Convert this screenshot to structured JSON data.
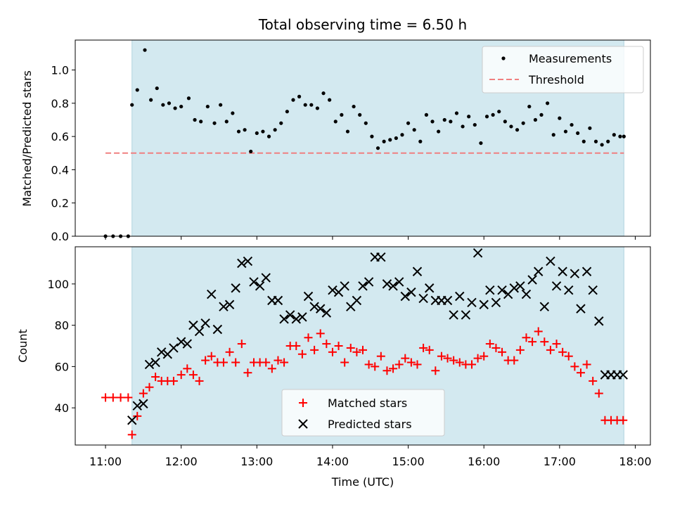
{
  "chart_data": [
    {
      "type": "scatter",
      "title": "Total observing time = 6.50 h",
      "ylabel": "Matched/Predicted stars",
      "ylim": [
        0,
        1.18
      ],
      "xlim": [
        10.6,
        18.2
      ],
      "ytick_labels": [
        "0.0",
        "0.2",
        "0.4",
        "0.6",
        "0.8",
        "1.0"
      ],
      "yticks": [
        0,
        0.2,
        0.4,
        0.6,
        0.8,
        1.0
      ],
      "shaded_region": {
        "x": [
          11.35,
          17.85
        ],
        "color": "#d3e9f0"
      },
      "legend_placement": "upper right",
      "series": [
        {
          "name": "Measurements",
          "marker": "dot",
          "color": "#000000",
          "x": [
            11.0,
            11.1,
            11.2,
            11.3,
            11.35,
            11.42,
            11.52,
            11.6,
            11.68,
            11.76,
            11.84,
            11.92,
            12.0,
            12.1,
            12.18,
            12.26,
            12.35,
            12.44,
            12.52,
            12.6,
            12.68,
            12.76,
            12.84,
            12.92,
            13.0,
            13.08,
            13.16,
            13.24,
            13.32,
            13.4,
            13.48,
            13.56,
            13.64,
            13.72,
            13.8,
            13.88,
            13.96,
            14.04,
            14.12,
            14.2,
            14.28,
            14.36,
            14.44,
            14.52,
            14.6,
            14.68,
            14.76,
            14.84,
            14.92,
            15.0,
            15.08,
            15.16,
            15.24,
            15.32,
            15.4,
            15.48,
            15.56,
            15.64,
            15.72,
            15.8,
            15.88,
            15.96,
            16.04,
            16.12,
            16.2,
            16.28,
            16.36,
            16.44,
            16.52,
            16.6,
            16.68,
            16.76,
            16.84,
            16.92,
            17.0,
            17.08,
            17.16,
            17.24,
            17.32,
            17.4,
            17.48,
            17.56,
            17.64,
            17.72,
            17.8,
            17.85
          ],
          "y": [
            0.0,
            0.0,
            0.0,
            0.0,
            0.79,
            0.88,
            1.12,
            0.82,
            0.89,
            0.79,
            0.8,
            0.77,
            0.78,
            0.83,
            0.7,
            0.69,
            0.78,
            0.68,
            0.79,
            0.69,
            0.74,
            0.63,
            0.64,
            0.51,
            0.62,
            0.63,
            0.6,
            0.64,
            0.68,
            0.75,
            0.82,
            0.84,
            0.79,
            0.79,
            0.77,
            0.86,
            0.82,
            0.69,
            0.73,
            0.63,
            0.78,
            0.73,
            0.68,
            0.6,
            0.53,
            0.57,
            0.58,
            0.59,
            0.61,
            0.68,
            0.64,
            0.57,
            0.73,
            0.69,
            0.63,
            0.7,
            0.69,
            0.74,
            0.66,
            0.72,
            0.67,
            0.56,
            0.72,
            0.73,
            0.75,
            0.69,
            0.66,
            0.64,
            0.68,
            0.78,
            0.7,
            0.73,
            0.8,
            0.61,
            0.71,
            0.63,
            0.67,
            0.62,
            0.57,
            0.65,
            0.57,
            0.55,
            0.57,
            0.61,
            0.6,
            0.6
          ]
        },
        {
          "name": "Threshold",
          "marker": "dashed-line",
          "color": "#f08080",
          "x": [
            11.0,
            17.85
          ],
          "y": [
            0.5,
            0.5
          ]
        }
      ]
    },
    {
      "type": "scatter",
      "xlabel": "Time (UTC)",
      "ylabel": "Count",
      "ylim": [
        22,
        118
      ],
      "xlim": [
        10.6,
        18.2
      ],
      "xtick_labels": [
        "11:00",
        "12:00",
        "13:00",
        "14:00",
        "15:00",
        "16:00",
        "17:00",
        "18:00"
      ],
      "xticks": [
        11,
        12,
        13,
        14,
        15,
        16,
        17,
        18
      ],
      "ytick_labels": [
        "40",
        "60",
        "80",
        "100"
      ],
      "yticks": [
        40,
        60,
        80,
        100
      ],
      "shaded_region": {
        "x": [
          11.35,
          17.85
        ],
        "color": "#d3e9f0"
      },
      "legend_placement": "lower center",
      "series": [
        {
          "name": "Matched stars",
          "marker": "plus",
          "color": "#ff0000",
          "x": [
            11.0,
            11.1,
            11.2,
            11.3,
            11.35,
            11.42,
            11.5,
            11.58,
            11.66,
            11.74,
            11.82,
            11.9,
            12.0,
            12.08,
            12.16,
            12.24,
            12.32,
            12.4,
            12.48,
            12.56,
            12.64,
            12.72,
            12.8,
            12.88,
            12.96,
            13.04,
            13.12,
            13.2,
            13.28,
            13.36,
            13.44,
            13.52,
            13.6,
            13.68,
            13.76,
            13.84,
            13.92,
            14.0,
            14.08,
            14.16,
            14.24,
            14.32,
            14.4,
            14.48,
            14.56,
            14.64,
            14.72,
            14.8,
            14.88,
            14.96,
            15.04,
            15.12,
            15.2,
            15.28,
            15.36,
            15.44,
            15.52,
            15.6,
            15.68,
            15.76,
            15.84,
            15.92,
            16.0,
            16.08,
            16.16,
            16.24,
            16.32,
            16.4,
            16.48,
            16.56,
            16.64,
            16.72,
            16.8,
            16.88,
            16.96,
            17.04,
            17.12,
            17.2,
            17.28,
            17.36,
            17.44,
            17.52,
            17.6,
            17.68,
            17.76,
            17.84
          ],
          "y": [
            45,
            45,
            45,
            45,
            27,
            36,
            47,
            50,
            55,
            53,
            53,
            53,
            56,
            59,
            56,
            53,
            63,
            65,
            62,
            62,
            67,
            62,
            71,
            57,
            62,
            62,
            62,
            59,
            63,
            62,
            70,
            70,
            66,
            74,
            68,
            76,
            71,
            67,
            70,
            62,
            69,
            67,
            68,
            61,
            60,
            65,
            58,
            59,
            61,
            64,
            62,
            61,
            69,
            68,
            58,
            65,
            64,
            63,
            62,
            61,
            61,
            64,
            65,
            71,
            69,
            67,
            63,
            63,
            68,
            74,
            72,
            77,
            72,
            68,
            71,
            67,
            65,
            60,
            57,
            61,
            53,
            47,
            34,
            34,
            34,
            34
          ]
        },
        {
          "name": "Predicted stars",
          "marker": "x",
          "color": "#000000",
          "x": [
            11.35,
            11.42,
            11.5,
            11.58,
            11.66,
            11.74,
            11.82,
            11.9,
            12.0,
            12.08,
            12.16,
            12.24,
            12.32,
            12.4,
            12.48,
            12.56,
            12.64,
            12.72,
            12.8,
            12.88,
            12.96,
            13.04,
            13.12,
            13.2,
            13.28,
            13.36,
            13.44,
            13.52,
            13.6,
            13.68,
            13.76,
            13.84,
            13.92,
            14.0,
            14.08,
            14.16,
            14.24,
            14.32,
            14.4,
            14.48,
            14.56,
            14.64,
            14.72,
            14.8,
            14.88,
            14.96,
            15.04,
            15.12,
            15.2,
            15.28,
            15.36,
            15.44,
            15.52,
            15.6,
            15.68,
            15.76,
            15.84,
            15.92,
            16.0,
            16.08,
            16.16,
            16.24,
            16.32,
            16.4,
            16.48,
            16.56,
            16.64,
            16.72,
            16.8,
            16.88,
            16.96,
            17.04,
            17.12,
            17.2,
            17.28,
            17.36,
            17.44,
            17.52,
            17.6,
            17.68,
            17.76,
            17.84
          ],
          "y": [
            34,
            41,
            42,
            61,
            62,
            67,
            66,
            69,
            72,
            71,
            80,
            77,
            81,
            95,
            78,
            89,
            90,
            98,
            110,
            111,
            101,
            99,
            103,
            92,
            92,
            83,
            85,
            83,
            84,
            94,
            89,
            88,
            86,
            97,
            96,
            99,
            89,
            92,
            99,
            101,
            113,
            113,
            100,
            99,
            101,
            94,
            96,
            106,
            93,
            98,
            92,
            92,
            92,
            85,
            94,
            85,
            91,
            115,
            90,
            97,
            91,
            97,
            95,
            98,
            99,
            95,
            102,
            106,
            89,
            111,
            99,
            106,
            97,
            105,
            88,
            106,
            97,
            82,
            56,
            56,
            56,
            56
          ]
        }
      ]
    }
  ]
}
